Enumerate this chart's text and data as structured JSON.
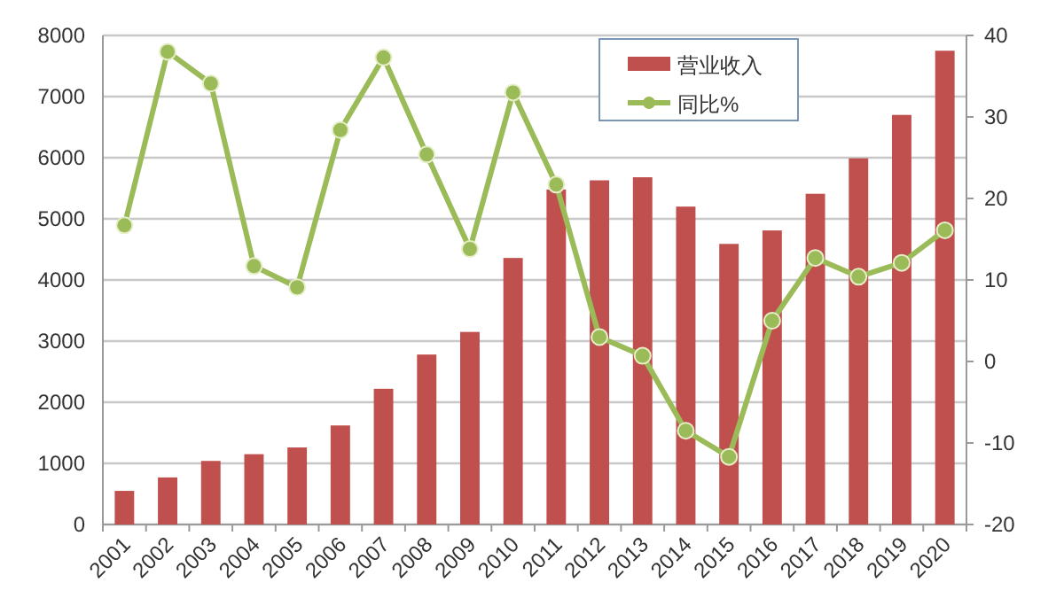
{
  "chart_data": {
    "type": "bar",
    "categories": [
      "2001",
      "2002",
      "2003",
      "2004",
      "2005",
      "2006",
      "2007",
      "2008",
      "2009",
      "2010",
      "2011",
      "2012",
      "2013",
      "2014",
      "2015",
      "2016",
      "2017",
      "2018",
      "2019",
      "2020"
    ],
    "series": [
      {
        "name": "营业收入",
        "color": "#c0504d",
        "values": [
          550,
          770,
          1040,
          1150,
          1260,
          1620,
          2220,
          2780,
          3150,
          4360,
          5480,
          5630,
          5680,
          5200,
          4590,
          4810,
          5410,
          5990,
          6700,
          7750
        ]
      },
      {
        "name": "同比%",
        "type": "line",
        "axis": "y2",
        "color": "#9bbb59",
        "marker": "circle",
        "values": [
          16.7,
          38.0,
          34.1,
          11.7,
          9.1,
          28.4,
          37.3,
          25.4,
          13.8,
          33.0,
          21.7,
          3.0,
          0.7,
          -8.5,
          -11.7,
          5.0,
          12.7,
          10.4,
          12.1,
          16.1
        ]
      }
    ],
    "ylim": [
      0,
      8000
    ],
    "yticks": [
      0,
      1000,
      2000,
      3000,
      4000,
      5000,
      6000,
      7000,
      8000
    ],
    "y2lim": [
      -20,
      40
    ],
    "y2ticks": [
      -20,
      -10,
      0,
      10,
      20,
      30,
      40
    ],
    "grid": "y",
    "legend": "top right"
  }
}
